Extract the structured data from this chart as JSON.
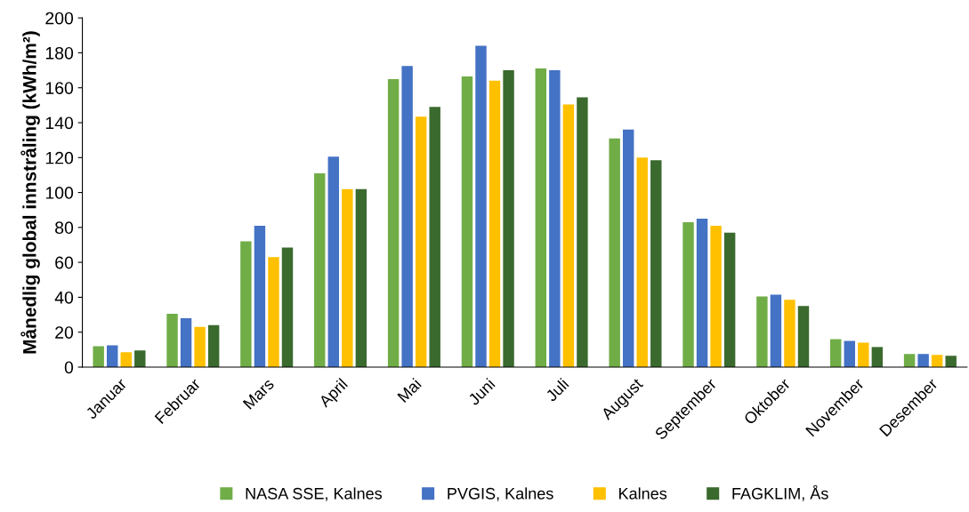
{
  "chart_data": {
    "type": "bar",
    "ylabel": "Månedlig global innstråling (kWh/m²)",
    "categories": [
      "Januar",
      "Februar",
      "Mars",
      "April",
      "Mai",
      "Juni",
      "Juli",
      "August",
      "September",
      "Oktober",
      "November",
      "Desember"
    ],
    "series": [
      {
        "name": "NASA SSE, Kalnes",
        "color": "#70ad47",
        "values": [
          12,
          30.5,
          72,
          111,
          165,
          166.5,
          171,
          131,
          83,
          40.5,
          16,
          7.5
        ]
      },
      {
        "name": "PVGIS, Kalnes",
        "color": "#4472c4",
        "values": [
          12.5,
          28,
          81,
          120.5,
          172.5,
          184,
          170,
          136,
          85,
          41.5,
          15,
          7.5
        ]
      },
      {
        "name": "Kalnes",
        "color": "#ffc000",
        "values": [
          8.5,
          23,
          63,
          102,
          143.5,
          164,
          150.5,
          120,
          81,
          38.5,
          14,
          7
        ]
      },
      {
        "name": "FAGKLIM, Ås",
        "color": "#3b6a2e",
        "values": [
          9.5,
          24,
          68.5,
          102,
          149,
          170,
          154.5,
          118.5,
          77,
          35,
          11.5,
          6.5
        ]
      }
    ],
    "ylim": [
      0,
      200
    ],
    "yticks": [
      0,
      20,
      40,
      60,
      80,
      100,
      120,
      140,
      160,
      180,
      200
    ],
    "grid": false,
    "legend": "bottom"
  }
}
